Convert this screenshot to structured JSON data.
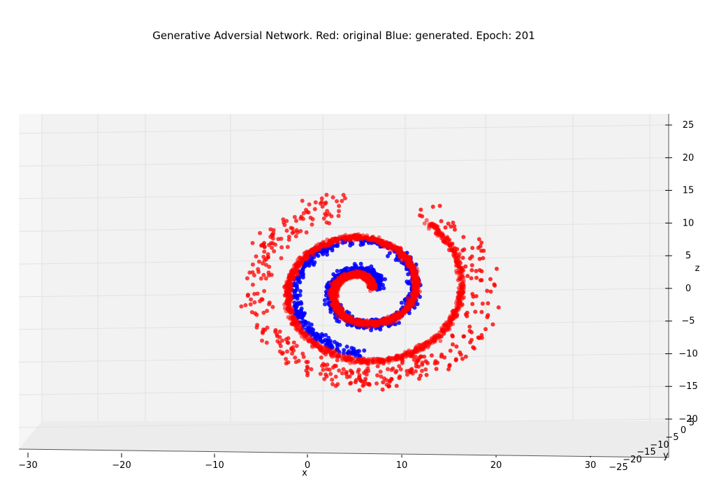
{
  "chart_data": {
    "type": "scatter",
    "projection": "3d",
    "title": "Generative Adversial Network. Red: original Blue: generated. Epoch: 201",
    "xlabel": "x",
    "ylabel": "y",
    "zlabel": "z",
    "xlim": [
      -32,
      32
    ],
    "zlim": [
      -21,
      26
    ],
    "x_ticks": [
      "−30",
      "−20",
      "−10",
      "0",
      "10",
      "20",
      "30"
    ],
    "y_ticks": [
      "−25",
      "−20",
      "−15",
      "−10",
      "−5",
      "0",
      "5"
    ],
    "z_ticks": [
      "−20",
      "−15",
      "−10",
      "−5",
      "0",
      "5",
      "10",
      "15",
      "20",
      "25"
    ],
    "grid": true,
    "series": [
      {
        "name": "original",
        "color": "#ff0000",
        "shape": "swiss-roll spiral with outer scattered arm",
        "turns": 2.1,
        "r_min": 1.5,
        "r_max": 21,
        "outer_arm_r": [
          17,
          26
        ],
        "z_center": 1
      },
      {
        "name": "generated",
        "color": "#0000ff",
        "shape": "swiss-roll spiral",
        "turns": 1.7,
        "r_min": 3,
        "r_max": 14,
        "z_center": 1
      }
    ]
  }
}
